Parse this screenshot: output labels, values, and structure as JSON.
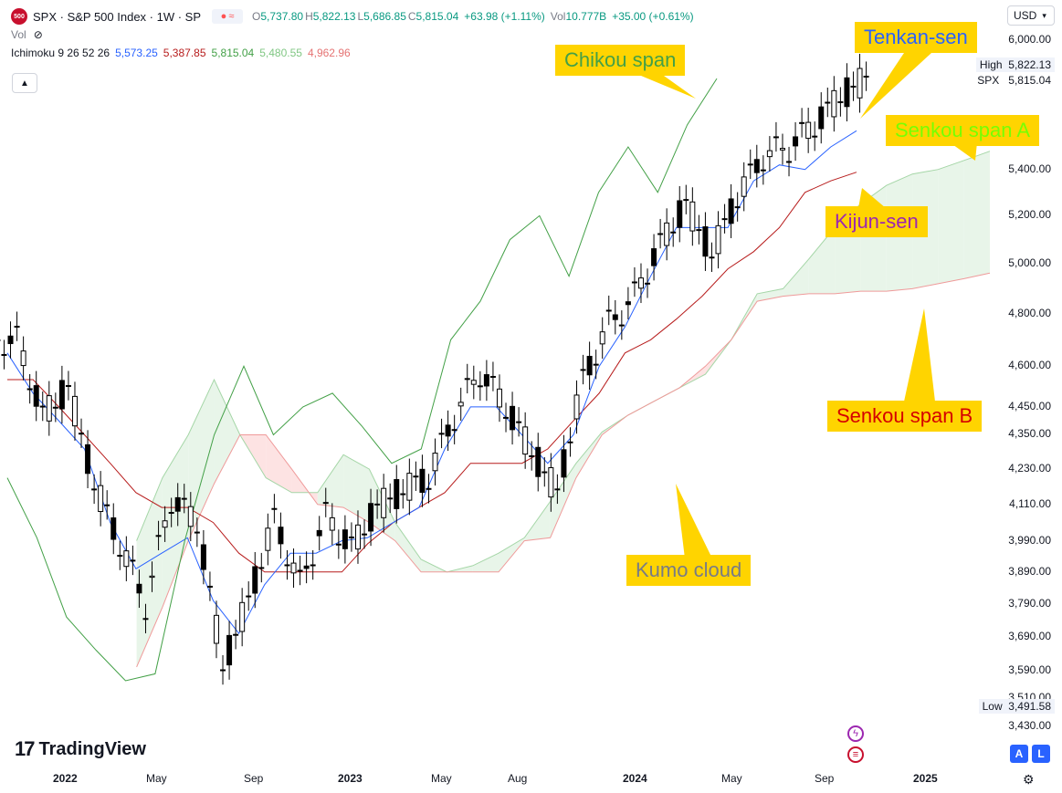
{
  "header": {
    "badge": "500",
    "symbol_line": "SPX · S&P 500 Index · 1W · SP",
    "compare_icon": "≈",
    "ohlc": {
      "o_label": "O",
      "o_value": "5,737.80",
      "h_label": "H",
      "h_value": "5,822.13",
      "l_label": "L",
      "l_value": "5,686.85",
      "c_label": "C",
      "c_value": "5,815.04",
      "change": "+63.98 (+1.11%)",
      "vol_label": "Vol",
      "vol_value": "10.777B",
      "vol_change": "+35.00 (+0.61%)"
    },
    "vol_indicator": "Vol",
    "vol_icon": "eye-off-icon",
    "ichimoku": {
      "label": "Ichimoku 9 26 52 26",
      "tenkan": "5,573.25",
      "kijun": "5,387.85",
      "chikou": "5,815.04",
      "span_a": "5,480.55",
      "span_b": "4,962.96"
    },
    "collapse_icon": "▲"
  },
  "currency": "USD",
  "price_axis": {
    "labels": [
      "6,000.00",
      "5,400.00",
      "5,200.00",
      "5,000.00",
      "4,800.00",
      "4,600.00",
      "4,450.00",
      "4,350.00",
      "4,230.00",
      "4,110.00",
      "3,990.00",
      "3,890.00",
      "3,790.00",
      "3,690.00",
      "3,590.00",
      "3,510.00",
      "3,430.00"
    ],
    "high_label": "High",
    "high_value": "5,822.13",
    "last_label": "SPX",
    "last_value": "5,815.04",
    "low_label": "Low",
    "low_value": "3,491.58"
  },
  "time_axis": [
    "2022",
    "May",
    "Sep",
    "2023",
    "May",
    "Aug",
    "2024",
    "May",
    "Sep",
    "2025"
  ],
  "callouts": {
    "tenkan": "Tenkan-sen",
    "chikou": "Chikou span",
    "senkou_a": "Senkou span A",
    "kijun": "Kijun-sen",
    "senkou_b": "Senkou span B",
    "kumo": "Kumo cloud"
  },
  "colors": {
    "tenkan": "#2962ff",
    "kijun": "#b71c1c",
    "chikou": "#43a047",
    "span_a": "#a5d6a7",
    "span_b": "#ef9a9a",
    "cloud_bull": "#e8f5e9",
    "cloud_bear": "#fde3e3",
    "callout_bg": "#ffd400"
  },
  "branding": "TradingView",
  "scale_buttons": {
    "auto": "A",
    "log": "L"
  },
  "chart_data": {
    "type": "candlestick",
    "yscale": "log",
    "ylim": [
      3430,
      6000
    ],
    "x": [
      "2022-01",
      "2022-02",
      "2022-03",
      "2022-04",
      "2022-05",
      "2022-06",
      "2022-07",
      "2022-08",
      "2022-09",
      "2022-10",
      "2022-11",
      "2022-12",
      "2023-01",
      "2023-02",
      "2023-03",
      "2023-04",
      "2023-05",
      "2023-06",
      "2023-07",
      "2023-08",
      "2023-09",
      "2023-10",
      "2023-11",
      "2023-12",
      "2024-01",
      "2024-02",
      "2024-03",
      "2024-04",
      "2024-05",
      "2024-06",
      "2024-07",
      "2024-08",
      "2024-09",
      "2024-10"
    ],
    "price": [
      4700,
      4420,
      4520,
      4180,
      3980,
      3790,
      4130,
      4050,
      3600,
      3800,
      4060,
      3850,
      4070,
      3970,
      4100,
      4160,
      4200,
      4420,
      4580,
      4450,
      4290,
      4150,
      4550,
      4760,
      4870,
      5080,
      5250,
      5040,
      5280,
      5460,
      5500,
      5600,
      5730,
      5815
    ],
    "tenkan": [
      4650,
      4500,
      4400,
      4300,
      4050,
      3900,
      3950,
      4000,
      3800,
      3700,
      3850,
      3950,
      3950,
      3990,
      4000,
      4050,
      4100,
      4300,
      4450,
      4450,
      4350,
      4250,
      4350,
      4600,
      4750,
      4950,
      5150,
      5150,
      5150,
      5350,
      5420,
      5400,
      5500,
      5573
    ],
    "kijun": [
      4550,
      4550,
      4450,
      4350,
      4250,
      4150,
      4100,
      4100,
      4050,
      3950,
      3890,
      3890,
      3890,
      3890,
      3980,
      4050,
      4100,
      4150,
      4250,
      4250,
      4250,
      4300,
      4400,
      4500,
      4650,
      4700,
      4780,
      4870,
      4980,
      5050,
      5150,
      5300,
      5350,
      5388
    ],
    "senkou_a": [
      3990,
      4200,
      4350,
      4550,
      4350,
      4200,
      4150,
      4150,
      4280,
      4230,
      4050,
      3930,
      3890,
      3910,
      3950,
      4000,
      4120,
      4250,
      4360,
      4420,
      4470,
      4520,
      4570,
      4700,
      4880,
      4900,
      5020,
      5150,
      5250,
      5330,
      5380,
      5400,
      5440,
      5481
    ],
    "senkou_b": [
      3600,
      3780,
      3990,
      4180,
      4350,
      4350,
      4230,
      4110,
      4100,
      4050,
      3990,
      3890,
      3890,
      3890,
      3890,
      3990,
      4000,
      4200,
      4350,
      4420,
      4470,
      4520,
      4600,
      4700,
      4850,
      4870,
      4880,
      4880,
      4890,
      4890,
      4900,
      4920,
      4940,
      4963
    ],
    "chikou": [
      4200,
      4000,
      3750,
      3650,
      3560,
      3580,
      3990,
      4350,
      4600,
      4350,
      4450,
      4500,
      4380,
      4250,
      4300,
      4700,
      4850,
      5100,
      5200,
      4950,
      5300,
      5500,
      5300,
      5600,
      5815
    ],
    "series": [
      {
        "name": "Tenkan-sen",
        "key": "tenkan"
      },
      {
        "name": "Kijun-sen",
        "key": "kijun"
      },
      {
        "name": "Senkou span A",
        "key": "senkou_a"
      },
      {
        "name": "Senkou span B",
        "key": "senkou_b"
      },
      {
        "name": "Chikou span",
        "key": "chikou"
      }
    ]
  }
}
